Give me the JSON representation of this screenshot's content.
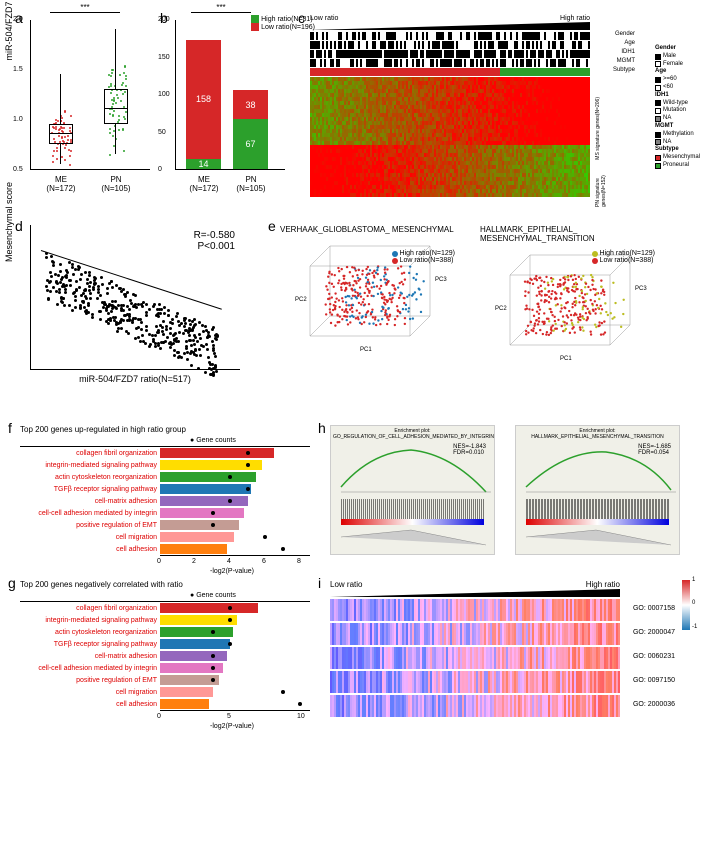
{
  "panel_a": {
    "label": "a",
    "ylabel": "miR-504/FZD7 ratio",
    "ylim": [
      0.5,
      2.0
    ],
    "yticks": [
      0.5,
      1.0,
      1.5,
      2.0
    ],
    "groups": [
      {
        "name": "ME",
        "n": 172,
        "color": "#d62728",
        "median": 0.85,
        "q1": 0.75,
        "q3": 0.95,
        "whisker_low": 0.55,
        "whisker_high": 1.45
      },
      {
        "name": "PN",
        "n": 105,
        "color": "#2ca02c",
        "median": 1.1,
        "q1": 0.95,
        "q3": 1.3,
        "whisker_low": 0.65,
        "whisker_high": 1.9
      }
    ],
    "significance": "***"
  },
  "panel_b": {
    "label": "b",
    "ylim": [
      0,
      200
    ],
    "yticks": [
      0,
      50,
      100,
      150,
      200
    ],
    "legend": [
      {
        "label": "High ratio(N=81)",
        "color": "#2ca02c"
      },
      {
        "label": "Low ratio(N=196)",
        "color": "#d62728"
      }
    ],
    "bars": [
      {
        "name": "ME",
        "n": 172,
        "segments": [
          {
            "value": 158,
            "color": "#d62728"
          },
          {
            "value": 14,
            "color": "#2ca02c"
          }
        ]
      },
      {
        "name": "PN",
        "n": 105,
        "segments": [
          {
            "value": 38,
            "color": "#d62728"
          },
          {
            "value": 67,
            "color": "#2ca02c"
          }
        ]
      }
    ],
    "significance": "***"
  },
  "panel_c": {
    "label": "c",
    "low_label": "Low ratio",
    "high_label": "High ratio",
    "annotations": [
      "Gender",
      "Age",
      "IDH1",
      "MGMT",
      "Subtype"
    ],
    "row_groups": [
      {
        "label": "MS signature genes(N=206)"
      },
      {
        "label": "PN signature genes(N=152)"
      }
    ],
    "legend": {
      "Gender": [
        {
          "label": "Male",
          "color": "#000000"
        },
        {
          "label": "Female",
          "color": "#ffffff"
        }
      ],
      "Age": [
        {
          "label": ">=60",
          "color": "#000000"
        },
        {
          "label": "<60",
          "color": "#ffffff"
        }
      ],
      "IDH1": [
        {
          "label": "Wild-type",
          "color": "#000000"
        },
        {
          "label": "Mutation",
          "color": "#ffffff"
        },
        {
          "label": "NA",
          "color": "#808080"
        }
      ],
      "MGMT": [
        {
          "label": "Methylation",
          "color": "#000000"
        },
        {
          "label": "NA",
          "color": "#808080"
        }
      ],
      "Subtype": [
        {
          "label": "Mesenchymal",
          "color": "#d62728"
        },
        {
          "label": "Proneural",
          "color": "#2ca02c"
        }
      ]
    }
  },
  "panel_d": {
    "label": "d",
    "xlabel": "miR-504/FZD7 ratio(N=517)",
    "ylabel": "Mesenchymal score",
    "stats": {
      "R": "-0.580",
      "P": "<0.001"
    },
    "xlim": [
      0.4,
      2.1
    ],
    "ylim": [
      -0.5,
      8.5
    ]
  },
  "panel_e": {
    "label": "e",
    "plots": [
      {
        "title": "VERHAAK_GLIOBLASTOMA_\nMESENCHYMAL",
        "legend": [
          {
            "label": "High ratio(N=129)",
            "color": "#1f77b4"
          },
          {
            "label": "Low ratio(N=388)",
            "color": "#d62728"
          }
        ],
        "axes": [
          "PC1",
          "PC2",
          "PC3"
        ]
      },
      {
        "title": "HALLMARK_EPITHELIAL_\nMESENCHYMAL_TRANSITION",
        "legend": [
          {
            "label": "High ratio(N=129)",
            "color": "#bcbd22"
          },
          {
            "label": "Low ratio(N=388)",
            "color": "#d62728"
          }
        ],
        "axes": [
          "PC1",
          "PC2",
          "PC3"
        ]
      }
    ]
  },
  "panel_f": {
    "label": "f",
    "title": "Top 200 genes up-regulated in high ratio group",
    "xlabel": "-log2(P-value)",
    "xlim": [
      0,
      8
    ],
    "xticks": [
      0,
      2,
      4,
      6,
      8
    ],
    "legend_label": "Gene counts",
    "terms": [
      {
        "label": "collagen fibril organization",
        "logp": 6.5,
        "count": 5,
        "color": "#d62728"
      },
      {
        "label": "integrin-mediated signaling pathway",
        "logp": 5.8,
        "count": 5,
        "color": "#ffdd00"
      },
      {
        "label": "actin cytoskeleton reorganization",
        "logp": 5.5,
        "count": 4,
        "color": "#2ca02c"
      },
      {
        "label": "TGFβ receptor signaling pathway",
        "logp": 5.2,
        "count": 5,
        "color": "#1f77b4"
      },
      {
        "label": "cell-matrix adhesion",
        "logp": 5.0,
        "count": 4,
        "color": "#9467bd"
      },
      {
        "label": "cell-cell adhesion mediated by integrin",
        "logp": 4.8,
        "count": 3,
        "color": "#e377c2"
      },
      {
        "label": "positive regulation of EMT",
        "logp": 4.5,
        "count": 3,
        "color": "#c49c94"
      },
      {
        "label": "cell migration",
        "logp": 4.2,
        "count": 6,
        "color": "#ff9896"
      },
      {
        "label": "cell adhesion",
        "logp": 3.8,
        "count": 7,
        "color": "#ff7f0e"
      }
    ]
  },
  "panel_g": {
    "label": "g",
    "title": "Top 200 genes negatively correlated with ratio",
    "xlabel": "-log2(P-value)",
    "xlim": [
      0,
      10
    ],
    "xticks": [
      0,
      5,
      10
    ],
    "legend_label": "Gene counts",
    "terms": [
      {
        "label": "collagen fibril organization",
        "logp": 7.0,
        "count": 4,
        "color": "#d62728"
      },
      {
        "label": "integrin-mediated signaling pathway",
        "logp": 5.5,
        "count": 4,
        "color": "#ffdd00"
      },
      {
        "label": "actin cytoskeleton reorganization",
        "logp": 5.2,
        "count": 3,
        "color": "#2ca02c"
      },
      {
        "label": "TGFβ receptor signaling pathway",
        "logp": 5.0,
        "count": 4,
        "color": "#1f77b4"
      },
      {
        "label": "cell-matrix adhesion",
        "logp": 4.8,
        "count": 3,
        "color": "#9467bd"
      },
      {
        "label": "cell-cell adhesion mediated by integrin",
        "logp": 4.5,
        "count": 3,
        "color": "#e377c2"
      },
      {
        "label": "positive regulation of EMT",
        "logp": 4.2,
        "count": 3,
        "color": "#c49c94"
      },
      {
        "label": "cell migration",
        "logp": 3.8,
        "count": 7,
        "color": "#ff9896"
      },
      {
        "label": "cell adhesion",
        "logp": 3.5,
        "count": 8,
        "color": "#ff7f0e"
      }
    ]
  },
  "panel_h": {
    "label": "h",
    "plots": [
      {
        "title": "GO_REGULATION_OF_CELL_ADHESION_MEDIATED_BY_INTEGRIN",
        "NES": "-1.843",
        "FDR": "0.010"
      },
      {
        "title": "HALLMARK_EPITHELIAL_MESENCHYMAL_TRANSITION",
        "NES": "-1.685",
        "FDR": "0.054"
      }
    ]
  },
  "panel_i": {
    "label": "i",
    "low_label": "Low ratio",
    "high_label": "High ratio",
    "colorbar": {
      "min": -1.0,
      "mid": 0,
      "max": 1.0,
      "ticks": [
        -1.0,
        -0.5,
        0,
        0.5,
        1.0
      ]
    },
    "rows": [
      {
        "go": "GO: 0007158"
      },
      {
        "go": "GO: 2000047"
      },
      {
        "go": "GO: 0060231"
      },
      {
        "go": "GO: 0097150"
      },
      {
        "go": "GO: 2000036"
      }
    ]
  }
}
